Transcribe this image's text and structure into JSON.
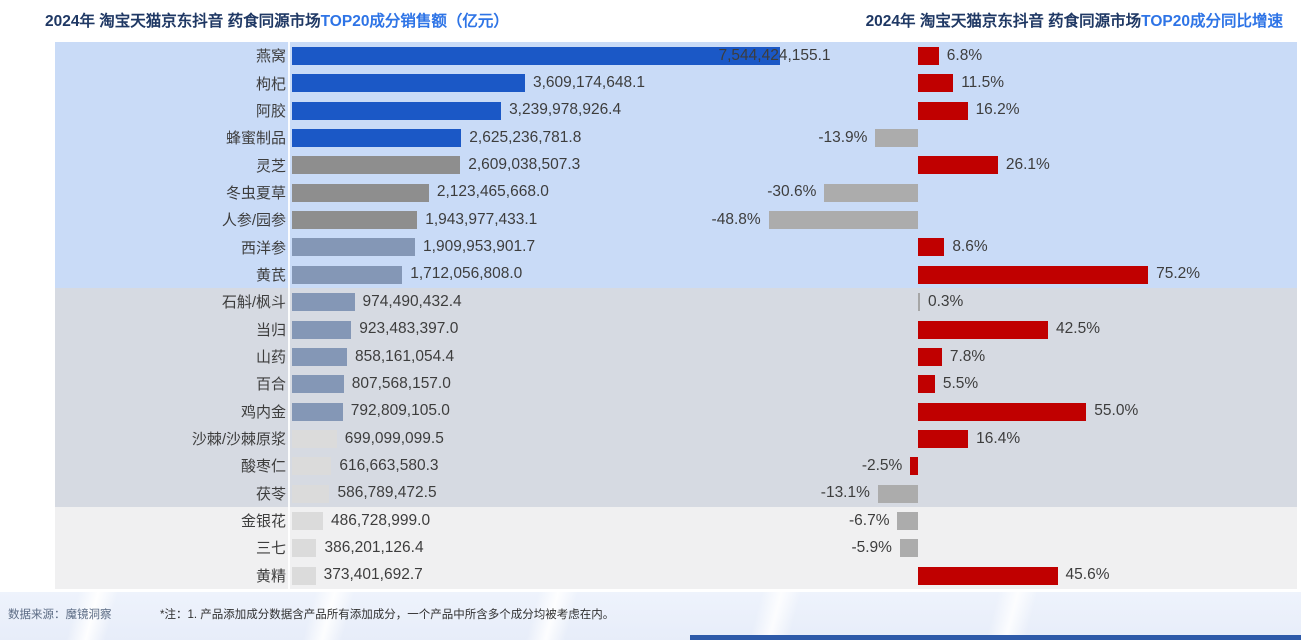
{
  "titles": {
    "left_prefix": "2024年 淘宝天猫京东抖音 药食同源市场",
    "left_highlight": "TOP20成分销售额（亿元）",
    "right_prefix": "2024年 淘宝天猫京东抖音 药食同源市场",
    "right_highlight": "TOP20成分同比增速"
  },
  "footer": {
    "source": "数据来源：魔镜洞察",
    "note": "*注：1. 产品添加成分数据含产品所有添加成分，一个产品中所含多个成分均被考虑在内。"
  },
  "colors": {
    "band_top": "#c9dbf7",
    "band_mid": "#d6dae2",
    "band_bottom": "#f0f0f1",
    "sales_blue": "#1b58c6",
    "sales_gray": "#8e8e8e",
    "sales_slate": "#8497b6",
    "sales_lightgray": "#dbdbdb",
    "growth_red": "#c00000",
    "growth_gray": "#acacac",
    "growth_sliver": "#a6a6a6",
    "title_navy": "#1f3864",
    "title_blue": "#2e74e6",
    "label_text": "#3d3d3d"
  },
  "chart_data": [
    {
      "type": "bar",
      "orientation": "horizontal",
      "title": "2024年 淘宝天猫京东抖音 药食同源市场TOP20成分销售额（亿元）",
      "legend": "none",
      "grid": false,
      "xlim": [
        0,
        7800000000
      ],
      "categories": [
        "燕窝",
        "枸杞",
        "阿胶",
        "蜂蜜制品",
        "灵芝",
        "冬虫夏草",
        "人参/园参",
        "西洋参",
        "黄芪",
        "石斛/枫斗",
        "当归",
        "山药",
        "百合",
        "鸡内金",
        "沙棘/沙棘原浆",
        "酸枣仁",
        "茯苓",
        "金银花",
        "三七",
        "黄精"
      ],
      "values": [
        7544424155.1,
        3609174648.1,
        3239978926.4,
        2625236781.8,
        2609038507.3,
        2123465668.0,
        1943977433.1,
        1909953901.7,
        1712056808.0,
        974490432.4,
        923483397.0,
        858161054.4,
        807568157.0,
        792809105.0,
        699099099.5,
        616663580.3,
        586789472.5,
        486728999.0,
        386201126.4,
        373401692.7
      ],
      "labels": [
        "7,544,424,155.1",
        "3,609,174,648.1",
        "3,239,978,926.4",
        "2,625,236,781.8",
        "2,609,038,507.3",
        "2,123,465,668.0",
        "1,943,977,433.1",
        "1,909,953,901.7",
        "1,712,056,808.0",
        "974,490,432.4",
        "923,483,397.0",
        "858,161,054.4",
        "807,568,157.0",
        "792,809,105.0",
        "699,099,099.5",
        "616,663,580.3",
        "586,789,472.5",
        "486,728,999.0",
        "386,201,126.4",
        "373,401,692.7"
      ],
      "bar_colors": [
        "blue",
        "blue",
        "blue",
        "blue",
        "gray",
        "gray",
        "gray",
        "slate",
        "slate",
        "slate",
        "slate",
        "slate",
        "slate",
        "slate",
        "lightgray",
        "lightgray",
        "lightgray",
        "lightgray",
        "lightgray",
        "lightgray"
      ]
    },
    {
      "type": "bar",
      "orientation": "horizontal",
      "title": "2024年 淘宝天猫京东抖音 药食同源市场TOP20成分同比增速",
      "legend": "none",
      "grid": false,
      "xlim": [
        -60,
        125
      ],
      "categories": [
        "燕窝",
        "枸杞",
        "阿胶",
        "蜂蜜制品",
        "灵芝",
        "冬虫夏草",
        "人参/园参",
        "西洋参",
        "黄芪",
        "石斛/枫斗",
        "当归",
        "山药",
        "百合",
        "鸡内金",
        "沙棘/沙棘原浆",
        "酸枣仁",
        "茯苓",
        "金银花",
        "三七",
        "黄精"
      ],
      "values": [
        6.8,
        11.5,
        16.2,
        -13.9,
        26.1,
        -30.6,
        -48.8,
        8.6,
        75.2,
        0.3,
        42.5,
        7.8,
        5.5,
        55.0,
        16.4,
        -2.5,
        -13.1,
        -6.7,
        -5.9,
        45.6
      ],
      "labels": [
        "6.8%",
        "11.5%",
        "16.2%",
        "-13.9%",
        "26.1%",
        "-30.6%",
        "-48.8%",
        "8.6%",
        "75.2%",
        "0.3%",
        "42.5%",
        "7.8%",
        "5.5%",
        "55.0%",
        "16.4%",
        "-2.5%",
        "-13.1%",
        "-6.7%",
        "-5.9%",
        "45.6%"
      ],
      "bar_colors": [
        "red",
        "red",
        "red",
        "gray",
        "red",
        "gray",
        "gray",
        "red",
        "red",
        "sliver",
        "red",
        "red",
        "red",
        "red",
        "red",
        "red",
        "gray",
        "gray",
        "gray",
        "red"
      ]
    }
  ]
}
